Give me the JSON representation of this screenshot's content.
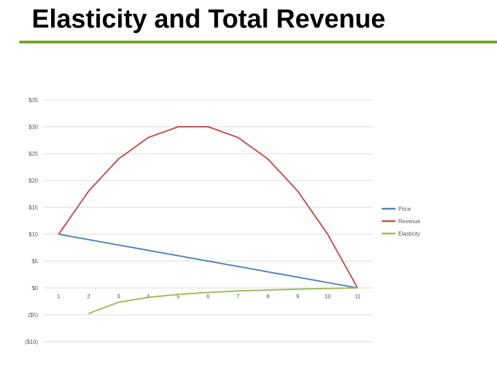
{
  "slide": {
    "title": "Elasticity and Total Revenue"
  },
  "chart_data": {
    "type": "line",
    "x": [
      1,
      2,
      3,
      4,
      5,
      6,
      7,
      8,
      9,
      10,
      11
    ],
    "series": [
      {
        "name": "Price",
        "color": "#4f81bd",
        "values": [
          10,
          9,
          8,
          7,
          6,
          5,
          4,
          3,
          2,
          1,
          0
        ]
      },
      {
        "name": "Revenue",
        "color": "#c0504d",
        "values": [
          10,
          18,
          24,
          28,
          30,
          30,
          28,
          24,
          18,
          10,
          0
        ]
      },
      {
        "name": "Elasticity",
        "color": "#9bbb59",
        "values": [
          null,
          -4.75,
          -2.67,
          -1.75,
          -1.2,
          -0.83,
          -0.57,
          -0.38,
          -0.22,
          -0.1,
          0
        ]
      }
    ],
    "ylim": [
      -10,
      35
    ],
    "y_ticks": [
      35,
      30,
      25,
      20,
      15,
      10,
      5,
      0,
      -5,
      -10
    ],
    "y_tick_labels": [
      "$35",
      "$30",
      "$25",
      "$20",
      "$15",
      "$10",
      "$5",
      "$0",
      "($5)",
      "($10)"
    ],
    "x_tick_labels": [
      "1",
      "2",
      "3",
      "4",
      "5",
      "6",
      "7",
      "8",
      "9",
      "10",
      "11"
    ],
    "grid": true,
    "legend": "right",
    "title": "",
    "xlabel": "",
    "ylabel": ""
  }
}
